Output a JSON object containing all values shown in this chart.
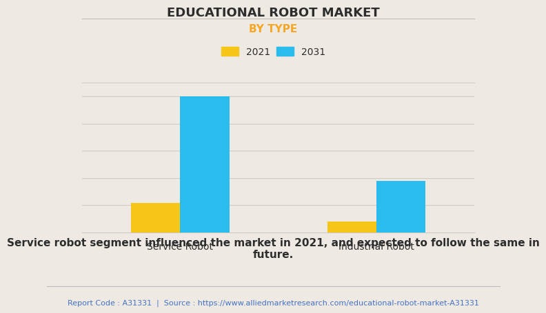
{
  "title": "EDUCATIONAL ROBOT MARKET",
  "subtitle": "BY TYPE",
  "categories": [
    "Service Robot",
    "Industrial Robot"
  ],
  "years": [
    "2021",
    "2031"
  ],
  "values_2021": [
    22,
    8
  ],
  "values_2031": [
    100,
    38
  ],
  "color_2021": "#F5C518",
  "color_2031": "#29BCEC",
  "background_color": "#EEEAE3",
  "plot_bg_color": "#EEEAE3",
  "title_color": "#2d2d2d",
  "subtitle_color": "#F5A623",
  "legend_labels": [
    "2021",
    "2031"
  ],
  "bar_width": 0.25,
  "ylim": [
    0,
    110
  ],
  "footer_text": "Report Code : A31331  |  Source : https://www.alliedmarketresearch.com/educational-robot-market-A31331",
  "footer_color": "#4472C4",
  "annotation_text": "Service robot segment influenced the market in 2021, and expected to follow the same in\nfuture.",
  "annotation_color": "#2d2d2d",
  "grid_color": "#d0ccc5",
  "title_fontsize": 13,
  "subtitle_fontsize": 11,
  "axis_label_fontsize": 10,
  "legend_fontsize": 10,
  "annotation_fontsize": 11,
  "footer_fontsize": 8
}
